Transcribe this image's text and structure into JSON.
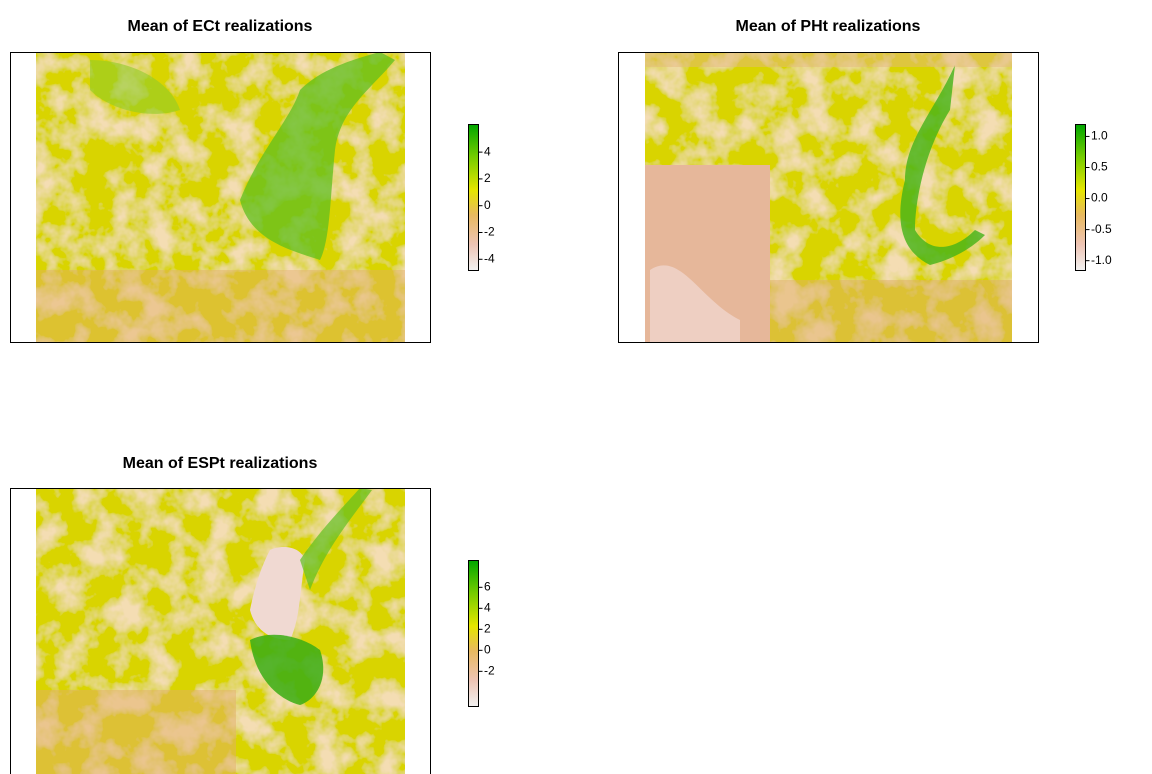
{
  "chart_data": [
    {
      "type": "raster",
      "title": "Mean of ECt realizations",
      "ylim": [
        -4.8,
        6.1
      ],
      "yticks": [
        4,
        2,
        0,
        -2,
        -4
      ]
    },
    {
      "type": "raster",
      "title": "Mean of PHt realizations",
      "ylim": [
        -1.15,
        1.2
      ],
      "yticks": [
        {
          "value": 1,
          "label": "1.0"
        },
        0.5,
        {
          "value": 0,
          "label": "0.0"
        },
        -0.5,
        {
          "value": -1,
          "label": "-1.0"
        }
      ]
    },
    {
      "type": "raster",
      "title": "Mean of ESPt realizations",
      "ylim": [
        -5.3,
        8.6
      ],
      "yticks": [
        6,
        4,
        2,
        0,
        -2
      ]
    }
  ]
}
